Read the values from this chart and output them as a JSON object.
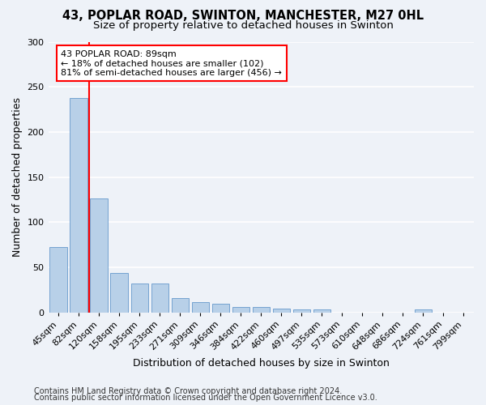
{
  "title1": "43, POPLAR ROAD, SWINTON, MANCHESTER, M27 0HL",
  "title2": "Size of property relative to detached houses in Swinton",
  "xlabel": "Distribution of detached houses by size in Swinton",
  "ylabel": "Number of detached properties",
  "categories": [
    "45sqm",
    "82sqm",
    "120sqm",
    "158sqm",
    "195sqm",
    "233sqm",
    "271sqm",
    "309sqm",
    "346sqm",
    "384sqm",
    "422sqm",
    "460sqm",
    "497sqm",
    "535sqm",
    "573sqm",
    "610sqm",
    "648sqm",
    "686sqm",
    "724sqm",
    "761sqm",
    "799sqm"
  ],
  "values": [
    72,
    238,
    126,
    44,
    32,
    32,
    16,
    11,
    10,
    6,
    6,
    4,
    3,
    3,
    0,
    0,
    0,
    0,
    3,
    0,
    0
  ],
  "bar_color": "#b8d0e8",
  "bar_edgecolor": "#6699cc",
  "ref_line_x": 1.5,
  "annotation_text": "43 POPLAR ROAD: 89sqm\n← 18% of detached houses are smaller (102)\n81% of semi-detached houses are larger (456) →",
  "annotation_box_facecolor": "white",
  "annotation_box_edgecolor": "red",
  "ref_line_color": "red",
  "ylim": [
    0,
    300
  ],
  "yticks": [
    0,
    50,
    100,
    150,
    200,
    250,
    300
  ],
  "footer1": "Contains HM Land Registry data © Crown copyright and database right 2024.",
  "footer2": "Contains public sector information licensed under the Open Government Licence v3.0.",
  "background_color": "#eef2f8",
  "grid_color": "#ffffff",
  "title1_fontsize": 10.5,
  "title2_fontsize": 9.5,
  "xlabel_fontsize": 9,
  "ylabel_fontsize": 9,
  "tick_fontsize": 8,
  "annot_fontsize": 8,
  "footer_fontsize": 7
}
